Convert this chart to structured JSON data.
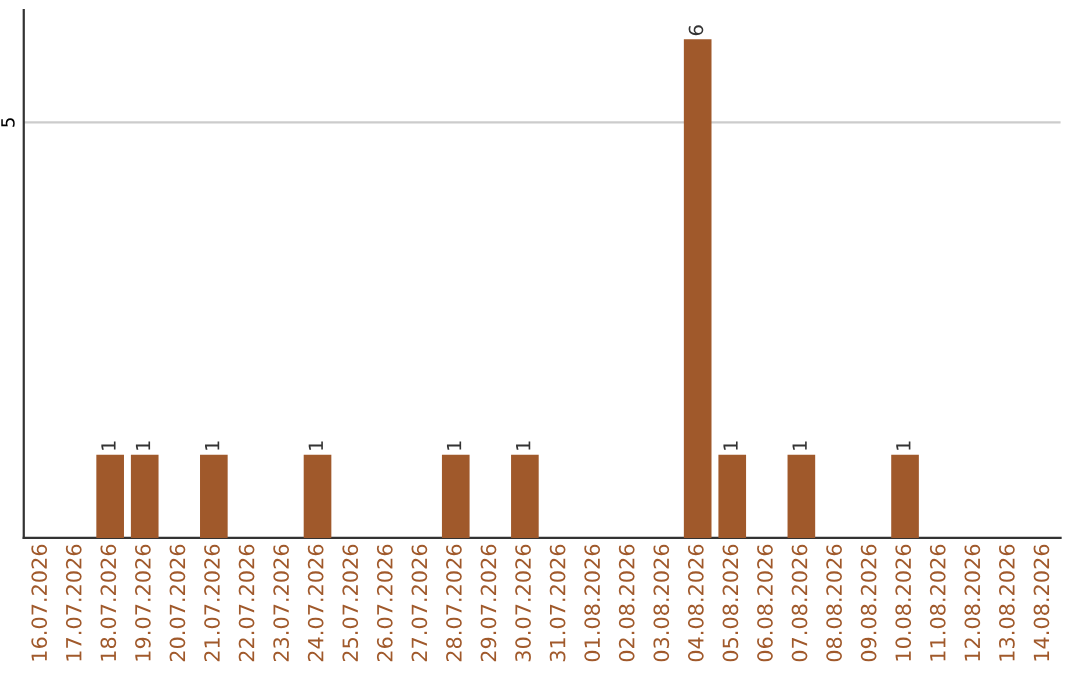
{
  "chart_data": {
    "type": "bar",
    "categories": [
      "16.07.2026",
      "17.07.2026",
      "18.07.2026",
      "19.07.2026",
      "20.07.2026",
      "21.07.2026",
      "22.07.2026",
      "23.07.2026",
      "24.07.2026",
      "25.07.2026",
      "26.07.2026",
      "27.07.2026",
      "28.07.2026",
      "29.07.2026",
      "30.07.2026",
      "31.07.2026",
      "01.08.2026",
      "02.08.2026",
      "03.08.2026",
      "04.08.2026",
      "05.08.2026",
      "06.08.2026",
      "07.08.2026",
      "08.08.2026",
      "09.08.2026",
      "10.08.2026",
      "11.08.2026",
      "12.08.2026",
      "13.08.2026",
      "14.08.2026"
    ],
    "values": [
      0,
      0,
      1,
      1,
      0,
      1,
      0,
      0,
      1,
      0,
      0,
      0,
      1,
      0,
      1,
      0,
      0,
      0,
      0,
      6,
      1,
      0,
      1,
      0,
      0,
      1,
      0,
      0,
      0,
      0
    ],
    "value_labels": [
      null,
      null,
      "1",
      "1",
      null,
      "1",
      null,
      null,
      "1",
      null,
      null,
      null,
      "1",
      null,
      "1",
      null,
      null,
      null,
      null,
      "6",
      "1",
      null,
      "1",
      null,
      null,
      "1",
      null,
      null,
      null,
      null
    ],
    "color": "#a0592b",
    "ylim": [
      0,
      6.35
    ],
    "yticks": [
      5
    ],
    "grid": "y"
  }
}
